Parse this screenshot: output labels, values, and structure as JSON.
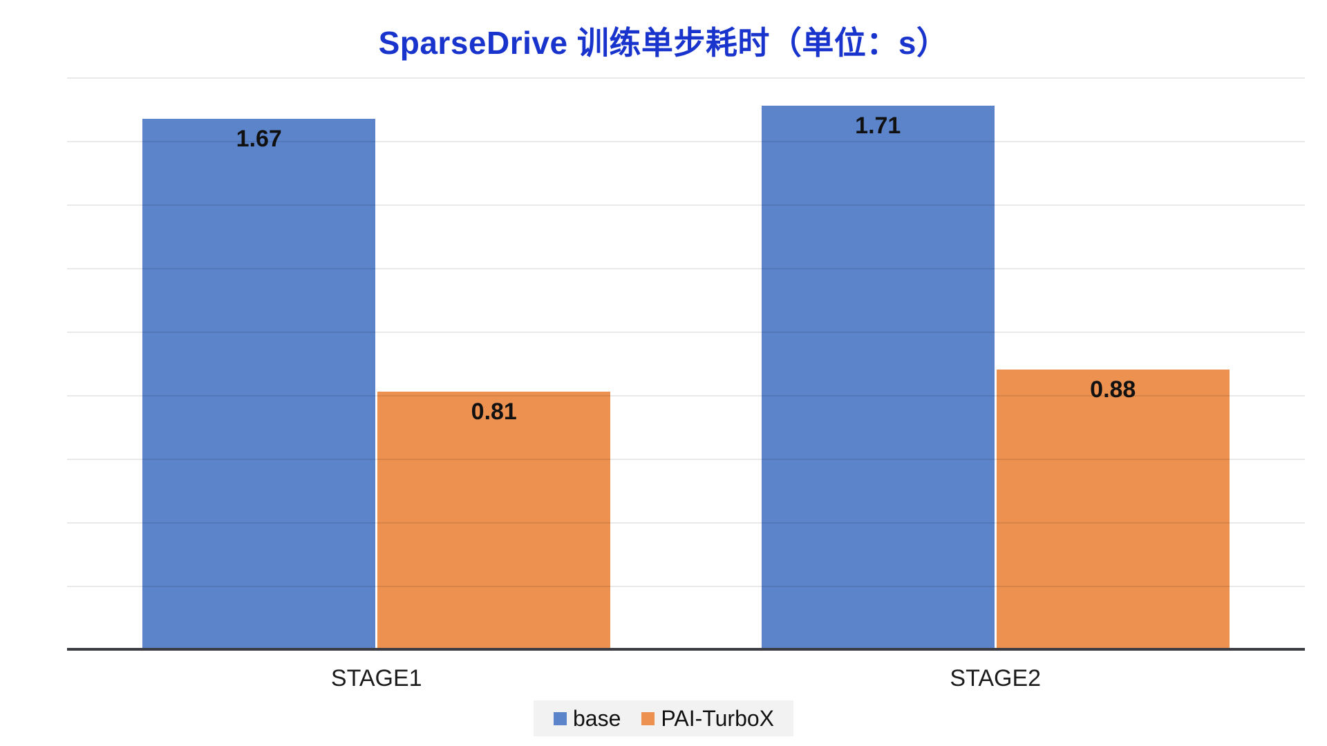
{
  "title": "SparseDrive 训练单步耗时（单位：s）",
  "colors": {
    "title": "#1934CC",
    "series_base": "#5B84CB",
    "series_pai_turbox": "#ED9150",
    "gridline": "rgba(0,0,0,0.085)",
    "axis": "#3B3B43",
    "legend_bg": "#F2F2F2",
    "value_label": "#111111"
  },
  "chart_data": {
    "type": "bar",
    "title": "SparseDrive 训练单步耗时（单位：s）",
    "unit": "s",
    "categories": [
      "STAGE1",
      "STAGE2"
    ],
    "series": [
      {
        "name": "base",
        "color": "#5B84CB",
        "values": [
          1.67,
          1.71
        ],
        "labels": [
          "1.67",
          "1.71"
        ]
      },
      {
        "name": "PAI-TurboX",
        "color": "#ED9150",
        "values": [
          0.81,
          0.88
        ],
        "labels": [
          "0.81",
          "0.88"
        ]
      }
    ],
    "xlabel": "",
    "ylabel": "",
    "ylim": [
      0,
      1.8
    ],
    "grid_step": 0.2,
    "grid": true,
    "y_tick_labels_visible": false,
    "legend_position": "bottom",
    "data_labels": true
  },
  "legend": {
    "items": [
      {
        "label": "base",
        "color": "#5B84CB"
      },
      {
        "label": "PAI-TurboX",
        "color": "#ED9150"
      }
    ]
  }
}
